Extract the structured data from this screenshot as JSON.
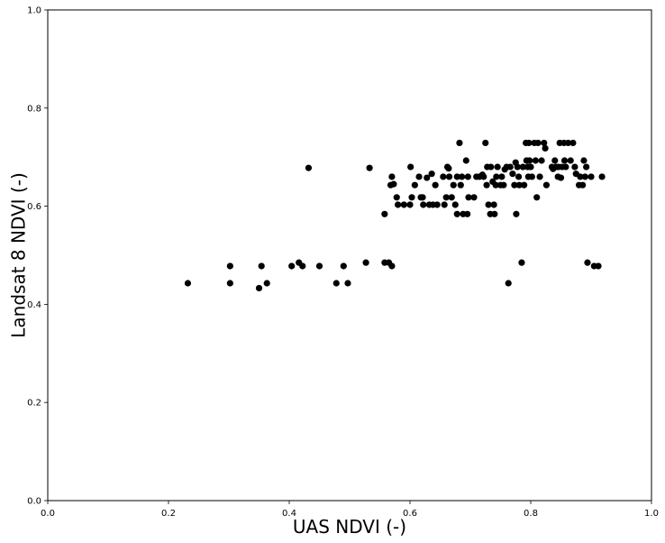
{
  "chart_data": {
    "type": "scatter",
    "xlabel": "UAS NDVI (-)",
    "ylabel": "Landsat 8 NDVI (-)",
    "xlim": [
      0.0,
      1.0
    ],
    "ylim": [
      0.0,
      1.0
    ],
    "xticks": [
      "0.0",
      "0.2",
      "0.4",
      "0.6",
      "0.8",
      "1.0"
    ],
    "yticks": [
      "0.0",
      "0.2",
      "0.4",
      "0.6",
      "0.8",
      "1.0"
    ],
    "grid": false,
    "marker_color": "#000000",
    "points": [
      [
        0.232,
        0.443
      ],
      [
        0.302,
        0.478
      ],
      [
        0.302,
        0.443
      ],
      [
        0.35,
        0.433
      ],
      [
        0.354,
        0.478
      ],
      [
        0.363,
        0.443
      ],
      [
        0.404,
        0.478
      ],
      [
        0.416,
        0.485
      ],
      [
        0.422,
        0.478
      ],
      [
        0.432,
        0.678
      ],
      [
        0.45,
        0.478
      ],
      [
        0.478,
        0.443
      ],
      [
        0.49,
        0.478
      ],
      [
        0.497,
        0.443
      ],
      [
        0.527,
        0.485
      ],
      [
        0.533,
        0.678
      ],
      [
        0.558,
        0.584
      ],
      [
        0.558,
        0.485
      ],
      [
        0.565,
        0.485
      ],
      [
        0.568,
        0.643
      ],
      [
        0.57,
        0.478
      ],
      [
        0.57,
        0.66
      ],
      [
        0.573,
        0.645
      ],
      [
        0.578,
        0.618
      ],
      [
        0.58,
        0.603
      ],
      [
        0.59,
        0.603
      ],
      [
        0.6,
        0.603
      ],
      [
        0.601,
        0.68
      ],
      [
        0.603,
        0.618
      ],
      [
        0.608,
        0.643
      ],
      [
        0.615,
        0.66
      ],
      [
        0.618,
        0.618
      ],
      [
        0.621,
        0.618
      ],
      [
        0.622,
        0.603
      ],
      [
        0.628,
        0.658
      ],
      [
        0.632,
        0.603
      ],
      [
        0.636,
        0.666
      ],
      [
        0.638,
        0.603
      ],
      [
        0.642,
        0.643
      ],
      [
        0.645,
        0.603
      ],
      [
        0.655,
        0.66
      ],
      [
        0.657,
        0.603
      ],
      [
        0.66,
        0.618
      ],
      [
        0.662,
        0.68
      ],
      [
        0.664,
        0.677
      ],
      [
        0.665,
        0.66
      ],
      [
        0.669,
        0.618
      ],
      [
        0.672,
        0.643
      ],
      [
        0.675,
        0.603
      ],
      [
        0.678,
        0.66
      ],
      [
        0.678,
        0.584
      ],
      [
        0.682,
        0.729
      ],
      [
        0.684,
        0.643
      ],
      [
        0.686,
        0.66
      ],
      [
        0.688,
        0.584
      ],
      [
        0.693,
        0.693
      ],
      [
        0.695,
        0.584
      ],
      [
        0.696,
        0.66
      ],
      [
        0.697,
        0.618
      ],
      [
        0.706,
        0.618
      ],
      [
        0.71,
        0.66
      ],
      [
        0.715,
        0.66
      ],
      [
        0.72,
        0.664
      ],
      [
        0.722,
        0.66
      ],
      [
        0.725,
        0.729
      ],
      [
        0.727,
        0.643
      ],
      [
        0.728,
        0.68
      ],
      [
        0.73,
        0.603
      ],
      [
        0.733,
        0.584
      ],
      [
        0.734,
        0.68
      ],
      [
        0.737,
        0.65
      ],
      [
        0.739,
        0.603
      ],
      [
        0.74,
        0.584
      ],
      [
        0.742,
        0.643
      ],
      [
        0.743,
        0.66
      ],
      [
        0.745,
        0.68
      ],
      [
        0.75,
        0.643
      ],
      [
        0.752,
        0.66
      ],
      [
        0.755,
        0.643
      ],
      [
        0.757,
        0.675
      ],
      [
        0.76,
        0.68
      ],
      [
        0.763,
        0.443
      ],
      [
        0.766,
        0.68
      ],
      [
        0.77,
        0.666
      ],
      [
        0.773,
        0.643
      ],
      [
        0.775,
        0.689
      ],
      [
        0.776,
        0.584
      ],
      [
        0.778,
        0.68
      ],
      [
        0.78,
        0.66
      ],
      [
        0.781,
        0.643
      ],
      [
        0.785,
        0.485
      ],
      [
        0.787,
        0.68
      ],
      [
        0.789,
        0.643
      ],
      [
        0.792,
        0.729
      ],
      [
        0.793,
        0.693
      ],
      [
        0.795,
        0.68
      ],
      [
        0.796,
        0.66
      ],
      [
        0.797,
        0.729
      ],
      [
        0.798,
        0.693
      ],
      [
        0.8,
        0.68
      ],
      [
        0.802,
        0.66
      ],
      [
        0.806,
        0.729
      ],
      [
        0.808,
        0.693
      ],
      [
        0.81,
        0.618
      ],
      [
        0.812,
        0.729
      ],
      [
        0.815,
        0.66
      ],
      [
        0.818,
        0.693
      ],
      [
        0.822,
        0.729
      ],
      [
        0.824,
        0.718
      ],
      [
        0.826,
        0.643
      ],
      [
        0.835,
        0.68
      ],
      [
        0.837,
        0.676
      ],
      [
        0.84,
        0.693
      ],
      [
        0.842,
        0.68
      ],
      [
        0.845,
        0.66
      ],
      [
        0.846,
        0.68
      ],
      [
        0.848,
        0.729
      ],
      [
        0.85,
        0.658
      ],
      [
        0.852,
        0.68
      ],
      [
        0.855,
        0.729
      ],
      [
        0.856,
        0.693
      ],
      [
        0.858,
        0.68
      ],
      [
        0.862,
        0.729
      ],
      [
        0.866,
        0.693
      ],
      [
        0.87,
        0.729
      ],
      [
        0.873,
        0.68
      ],
      [
        0.875,
        0.666
      ],
      [
        0.88,
        0.643
      ],
      [
        0.882,
        0.66
      ],
      [
        0.886,
        0.643
      ],
      [
        0.888,
        0.693
      ],
      [
        0.89,
        0.66
      ],
      [
        0.892,
        0.68
      ],
      [
        0.894,
        0.485
      ],
      [
        0.9,
        0.66
      ],
      [
        0.905,
        0.478
      ],
      [
        0.912,
        0.478
      ],
      [
        0.918,
        0.66
      ]
    ]
  }
}
